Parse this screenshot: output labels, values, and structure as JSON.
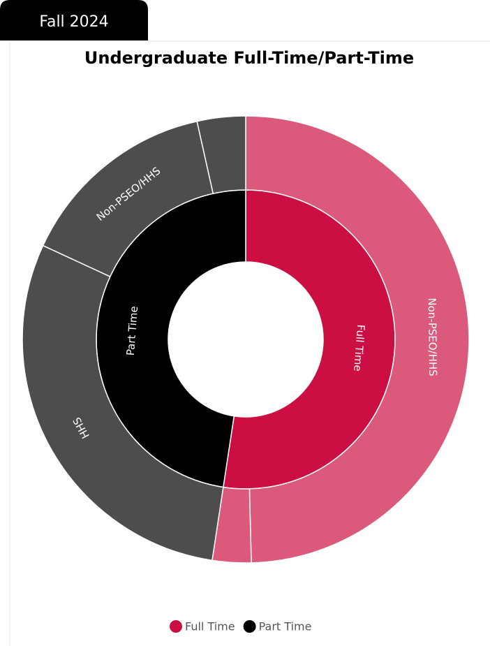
{
  "tab": "Fall 2024",
  "chart_data": {
    "type": "sunburst",
    "title": "Undergraduate Full-Time/Part-Time",
    "series": [
      {
        "name": "Full Time",
        "color": "#cc0f43",
        "child_color": "#db5a7b",
        "value": 52.4,
        "children": [
          {
            "name": "Non-PSEO/HHS",
            "value": 49.6
          },
          {
            "name": null,
            "value": 2.8
          }
        ]
      },
      {
        "name": "Part Time",
        "color": "#000000",
        "child_color": "#4d4d4d",
        "value": 47.6,
        "children": [
          {
            "name": "HHS",
            "value": 29.5
          },
          {
            "name": "Non-PSEO/HHS",
            "value": 14.6
          },
          {
            "name": null,
            "value": 3.5
          }
        ]
      }
    ]
  }
}
